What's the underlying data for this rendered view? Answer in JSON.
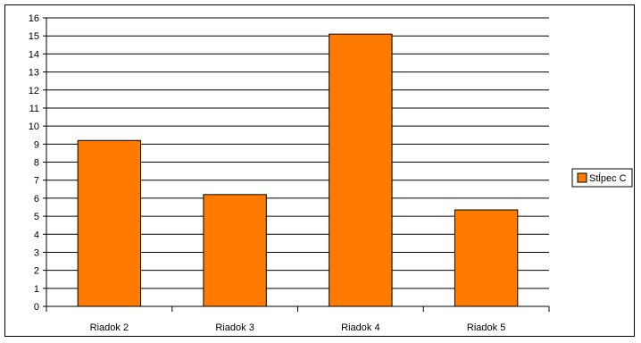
{
  "chart_data": {
    "type": "bar",
    "categories": [
      "Riadok 2",
      "Riadok 3",
      "Riadok 4",
      "Riadok 5"
    ],
    "series": [
      {
        "name": "Stĺpec C",
        "values": [
          9.2,
          6.2,
          15.1,
          5.35
        ]
      }
    ],
    "title": "",
    "xlabel": "",
    "ylabel": "",
    "ylim": [
      0,
      16
    ],
    "yticks": [
      "0",
      "1",
      "2",
      "3",
      "4",
      "5",
      "6",
      "7",
      "8",
      "9",
      "10",
      "11",
      "12",
      "13",
      "14",
      "15",
      "16"
    ],
    "grid": true,
    "legend_position": "right",
    "colors": {
      "bar": "#ff7a00",
      "border": "#000000",
      "grid": "#000000"
    }
  }
}
